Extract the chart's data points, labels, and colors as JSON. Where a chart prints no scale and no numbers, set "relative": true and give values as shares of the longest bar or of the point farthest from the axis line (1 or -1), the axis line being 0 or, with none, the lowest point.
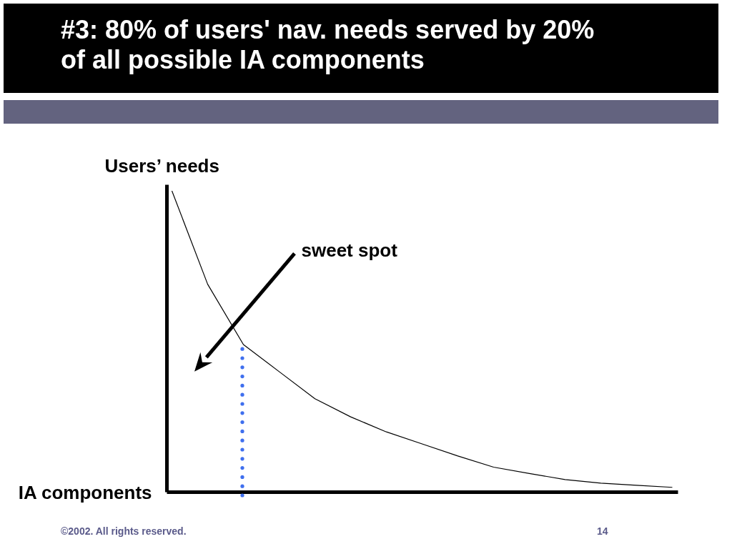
{
  "chart_data": {
    "type": "line",
    "title": "#3:  80% of users' nav. needs served by 20% of all possible IA components",
    "xlabel": "IA components",
    "ylabel": "Users’ needs",
    "relative": true,
    "categories": [
      null,
      null,
      null,
      null,
      null,
      null,
      null,
      null,
      null,
      null,
      null,
      null,
      null,
      null,
      null
    ],
    "series": [
      {
        "color": "#000000",
        "values": [
          1,
          0.69,
          0.49,
          0.4,
          0.31,
          0.25,
          0.2,
          0.16,
          0.12,
          0.083,
          0.062,
          0.042,
          0.03,
          0.023,
          0.016
        ]
      }
    ],
    "annotations": [
      "sweet spot",
      "©2002. All rights reserved.",
      "14"
    ]
  }
}
